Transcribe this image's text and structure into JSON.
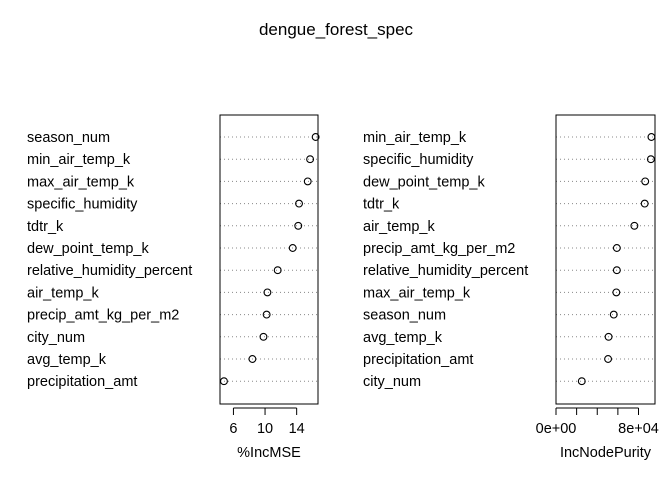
{
  "title": "dengue_forest_spec",
  "chart_data": [
    {
      "type": "scatter",
      "style": "dotchart",
      "xlabel": "%IncMSE",
      "xlim": [
        4.3,
        16.7
      ],
      "xticks": [
        6,
        10,
        14
      ],
      "xtick_labels": [
        "6",
        "10",
        "14"
      ],
      "grid": "dotted horizontal",
      "categories": [
        "season_num",
        "min_air_temp_k",
        "max_air_temp_k",
        "specific_humidity",
        "tdtr_k",
        "dew_point_temp_k",
        "relative_humidity_percent",
        "air_temp_k",
        "precip_amt_kg_per_m2",
        "city_num",
        "avg_temp_k",
        "precipitation_amt"
      ],
      "values": [
        16.4,
        15.7,
        15.4,
        14.3,
        14.2,
        13.5,
        11.6,
        10.3,
        10.2,
        9.8,
        8.4,
        4.8
      ]
    },
    {
      "type": "scatter",
      "style": "dotchart",
      "xlabel": "IncNodePurity",
      "xlim": [
        0,
        96000
      ],
      "xticks": [
        0,
        20000,
        40000,
        60000,
        80000
      ],
      "xtick_labels": [
        "0e+00",
        "",
        "",
        "",
        "8e+04"
      ],
      "grid": "dotted horizontal",
      "categories": [
        "min_air_temp_k",
        "specific_humidity",
        "dew_point_temp_k",
        "tdtr_k",
        "air_temp_k",
        "precip_amt_kg_per_m2",
        "relative_humidity_percent",
        "max_air_temp_k",
        "season_num",
        "avg_temp_k",
        "precipitation_amt",
        "city_num"
      ],
      "values": [
        92500,
        92000,
        86500,
        86000,
        76000,
        59000,
        59000,
        58500,
        56000,
        51000,
        50500,
        25000
      ]
    }
  ]
}
